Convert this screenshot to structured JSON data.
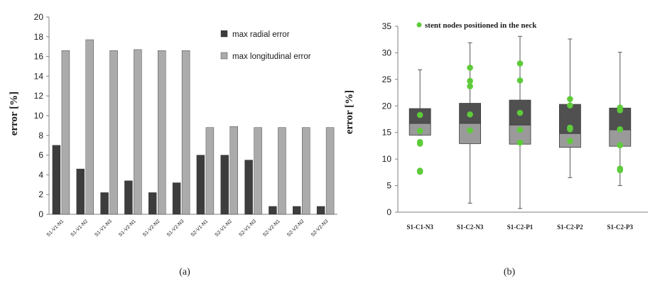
{
  "colors": {
    "radial": "#3d3d3d",
    "longitudinal": "#ababab",
    "box_upper": "#505050",
    "box_lower": "#9a9a9a",
    "nodes": "#5ecb3a",
    "axis": "#7f7f7f",
    "text": "#1a1a1a"
  },
  "chart_data": [
    {
      "panel_label": "(a)",
      "type": "bar",
      "ylabel": "error [%]",
      "ylim": [
        0,
        20
      ],
      "yticks": [
        "0",
        "2",
        "4",
        "6",
        "8",
        "10",
        "12",
        "14",
        "16",
        "18",
        "20"
      ],
      "legend_position": "top-right",
      "categories": [
        "S1-V1-N1",
        "S1-V1-N2",
        "S1-V1-N3",
        "S1-V2-N1",
        "S1-V2-N2",
        "S1-V2-N3",
        "S2-V1-N1",
        "S2-V1-N2",
        "S2-V1-N3",
        "S2-V2-N1",
        "S2-V2-N2",
        "S2-V2-N3"
      ],
      "series": [
        {
          "name": "max radial error",
          "values": [
            7.0,
            4.6,
            2.2,
            3.4,
            2.2,
            3.2,
            6.0,
            6.0,
            5.5,
            0.8,
            0.8,
            0.8
          ]
        },
        {
          "name": "max longitudinal error",
          "values": [
            16.6,
            17.7,
            16.6,
            16.7,
            16.6,
            16.6,
            8.8,
            8.9,
            8.8,
            8.8,
            8.8,
            8.8
          ]
        }
      ]
    },
    {
      "panel_label": "(b)",
      "type": "box",
      "ylabel": "error [%]",
      "ylim": [
        0,
        35
      ],
      "yticks": [
        "0",
        "5",
        "10",
        "15",
        "20",
        "25",
        "30",
        "35"
      ],
      "legend_position": "top",
      "legend_label": "stent nodes positioned in the neck",
      "categories": [
        "S1-C1-N3",
        "S1-C2-N3",
        "S1-C2-P1",
        "S1-C2-P2",
        "S1-C2-P3"
      ],
      "boxes": [
        {
          "min": 14.5,
          "q1": 14.5,
          "median": 16.7,
          "q3": 19.5,
          "max": 26.8,
          "points": [
            18.3,
            15.3,
            13.2,
            12.9,
            7.8,
            7.6
          ]
        },
        {
          "min": 1.7,
          "q1": 12.9,
          "median": 16.7,
          "q3": 20.5,
          "max": 31.9,
          "points": [
            27.2,
            24.7,
            23.7,
            18.4,
            15.4
          ]
        },
        {
          "min": 0.7,
          "q1": 12.8,
          "median": 16.4,
          "q3": 21.1,
          "max": 33.1,
          "points": [
            28.0,
            24.8,
            18.7,
            15.5,
            13.1
          ]
        },
        {
          "min": 6.5,
          "q1": 12.2,
          "median": 14.8,
          "q3": 20.3,
          "max": 32.6,
          "points": [
            21.3,
            20.1,
            15.9,
            15.6,
            13.4
          ]
        },
        {
          "min": 5.0,
          "q1": 12.4,
          "median": 15.5,
          "q3": 19.6,
          "max": 30.1,
          "points": [
            19.7,
            19.2,
            15.6,
            12.6,
            8.2,
            7.9
          ]
        }
      ]
    }
  ]
}
